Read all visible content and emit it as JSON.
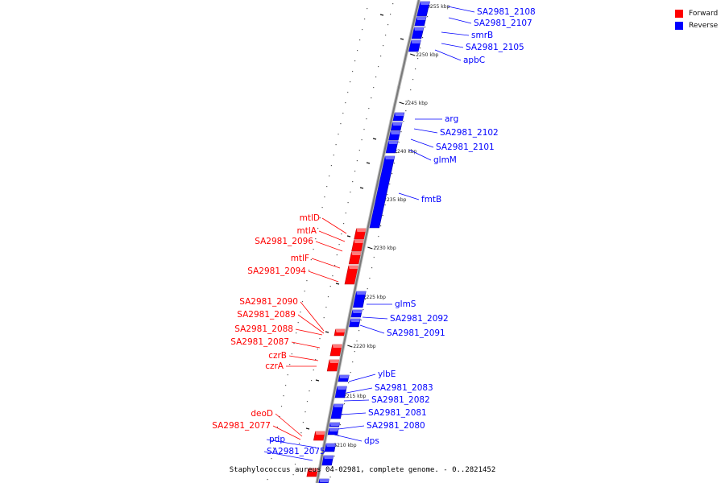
{
  "caption": "Staphylococcus aureus 04-02981, complete genome. - 0..2821452",
  "legend": [
    {
      "label": "Forward",
      "color": "#ff0000"
    },
    {
      "label": "Reverse",
      "color": "#0000ff"
    }
  ],
  "colors": {
    "forward": "#ff0000",
    "reverse": "#0000ff",
    "backbone": "#7a7a7a"
  },
  "ticks": [
    {
      "label": "2255 kbp"
    },
    {
      "label": "2250 kbp"
    },
    {
      "label": "2245 kbp"
    },
    {
      "label": "2240 kbp"
    },
    {
      "label": "2235 kbp"
    },
    {
      "label": "2230 kbp"
    },
    {
      "label": "2225 kbp"
    },
    {
      "label": "2220 kbp"
    },
    {
      "label": "2215 kbp"
    },
    {
      "label": "2210 kbp"
    }
  ],
  "genes": [
    {
      "label": "SA2981_2108",
      "strand": "reverse"
    },
    {
      "label": "SA2981_2107",
      "strand": "reverse"
    },
    {
      "label": "smrB",
      "strand": "reverse"
    },
    {
      "label": "SA2981_2105",
      "strand": "reverse"
    },
    {
      "label": "apbC",
      "strand": "reverse"
    },
    {
      "label": "arg",
      "strand": "reverse"
    },
    {
      "label": "SA2981_2102",
      "strand": "reverse"
    },
    {
      "label": "SA2981_2101",
      "strand": "reverse"
    },
    {
      "label": "glmM",
      "strand": "reverse"
    },
    {
      "label": "fmtB",
      "strand": "reverse"
    },
    {
      "label": "mtlD",
      "strand": "forward"
    },
    {
      "label": "mtlA",
      "strand": "forward"
    },
    {
      "label": "SA2981_2096",
      "strand": "forward"
    },
    {
      "label": "mtlF",
      "strand": "forward"
    },
    {
      "label": "SA2981_2094",
      "strand": "forward"
    },
    {
      "label": "glmS",
      "strand": "reverse"
    },
    {
      "label": "SA2981_2092",
      "strand": "reverse"
    },
    {
      "label": "SA2981_2091",
      "strand": "reverse"
    },
    {
      "label": "SA2981_2090",
      "strand": "forward"
    },
    {
      "label": "SA2981_2089",
      "strand": "forward"
    },
    {
      "label": "SA2981_2088",
      "strand": "forward"
    },
    {
      "label": "SA2981_2087",
      "strand": "forward"
    },
    {
      "label": "czrB",
      "strand": "forward"
    },
    {
      "label": "czrA",
      "strand": "forward"
    },
    {
      "label": "ylbE",
      "strand": "reverse"
    },
    {
      "label": "SA2981_2083",
      "strand": "reverse"
    },
    {
      "label": "SA2981_2082",
      "strand": "reverse"
    },
    {
      "label": "SA2981_2081",
      "strand": "reverse"
    },
    {
      "label": "SA2981_2080",
      "strand": "reverse"
    },
    {
      "label": "dps",
      "strand": "reverse"
    },
    {
      "label": "deoD",
      "strand": "forward"
    },
    {
      "label": "SA2981_2077",
      "strand": "forward"
    },
    {
      "label": "pdp",
      "strand": "reverse"
    },
    {
      "label": "SA2981_2075",
      "strand": "reverse"
    }
  ]
}
